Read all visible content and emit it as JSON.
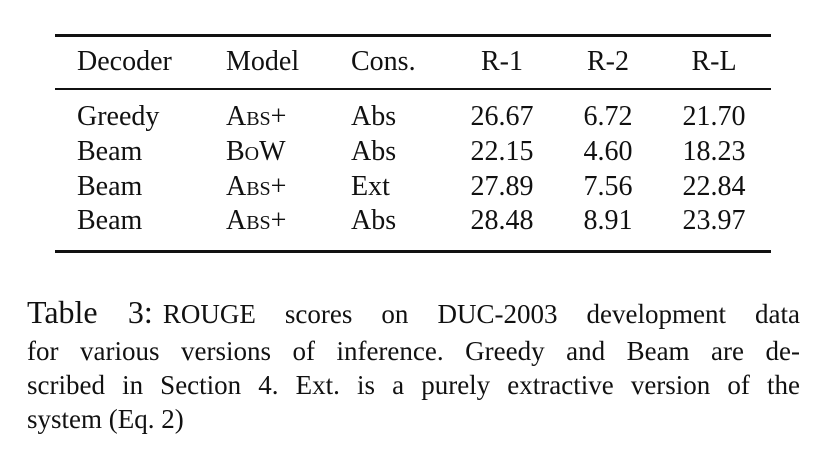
{
  "table": {
    "header": [
      "Decoder",
      "Model",
      "Cons.",
      "R-1",
      "R-2",
      "R-L"
    ],
    "rows": [
      [
        "Greedy",
        "Abs+",
        "Abs",
        "26.67",
        "6.72",
        "21.70"
      ],
      [
        "Beam",
        "BoW",
        "Abs",
        "22.15",
        "4.60",
        "18.23"
      ],
      [
        "Beam",
        "Abs+",
        "Ext",
        "27.89",
        "7.56",
        "22.84"
      ],
      [
        "Beam",
        "Abs+",
        "Abs",
        "28.48",
        "8.91",
        "23.97"
      ]
    ]
  },
  "caption": {
    "label": "Table 3:",
    "lines": [
      "ROUGE scores on DUC-2003 development data",
      "for various versions of inference. Greedy and Beam are de-",
      "scribed in Section 4. Ext. is a purely extractive version of the",
      "system (Eq. 2)"
    ]
  }
}
